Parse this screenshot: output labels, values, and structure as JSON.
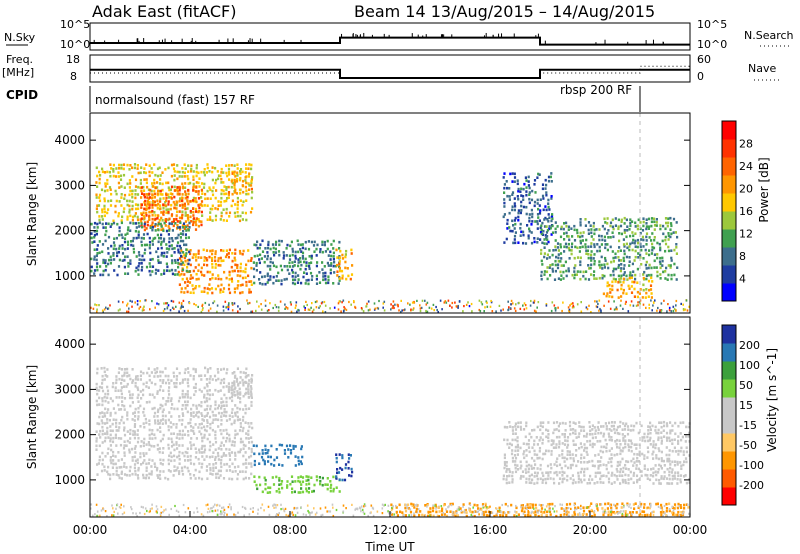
{
  "header": {
    "station": "Adak East (fitACF)",
    "beam_and_dates": "Beam 14 13/Aug/2015 – 14/Aug/2015"
  },
  "side_labels": {
    "nsky": "N.Sky",
    "nsky_ticks": [
      "10^5",
      "10^0"
    ],
    "nsearch": "N.Search",
    "nsearch_ticks": [
      "10^5",
      "10^0"
    ],
    "freq": "Freq.",
    "freq_unit": "[MHz]",
    "freq_ticks": [
      "18",
      "8"
    ],
    "nave": "Nave",
    "nave_ticks": [
      "60",
      "0"
    ],
    "cpid": "CPID"
  },
  "cpid_labels": {
    "left": "normalsound (fast) 157 RF",
    "right": "rbsp 200 RF"
  },
  "colors": {
    "power_scale": [
      "#0000ff",
      "#1e3ca0",
      "#3c6e8c",
      "#40a050",
      "#9cc83c",
      "#ffc800",
      "#ff9600",
      "#ff6400",
      "#ff3200",
      "#ff0000"
    ],
    "velocity_scale": [
      "#ff0000",
      "#ff5a00",
      "#ff9600",
      "#ffc864",
      "#c8c8c8",
      "#c8c8c8",
      "#78d23c",
      "#3ca03c",
      "#2878b4",
      "#1e32a0"
    ]
  },
  "chart_data": [
    {
      "type": "line",
      "name_label": "N.Sky / N.Search",
      "x_range": [
        "00:00",
        "24:00"
      ],
      "y_scale": "log",
      "ylim": [
        1,
        100000
      ],
      "series": [
        {
          "name": "N.Sky",
          "x": [
            0,
            10,
            10,
            18,
            18,
            24
          ],
          "values": [
            20,
            20,
            200,
            200,
            10,
            10
          ]
        },
        {
          "name": "N.Search",
          "x": [
            0,
            24
          ],
          "values": [
            3,
            3
          ]
        }
      ]
    },
    {
      "type": "line",
      "name_label": "Freq. / Nave",
      "x_range": [
        "00:00",
        "24:00"
      ],
      "ylim_freq": [
        8,
        18
      ],
      "ylim_nave": [
        0,
        60
      ],
      "series": [
        {
          "name": "Freq.",
          "x": [
            0,
            10,
            10,
            18,
            18,
            24
          ],
          "values": [
            12.5,
            12.5,
            9.5,
            9.5,
            12.5,
            12.5
          ]
        },
        {
          "name": "Nave",
          "x": [
            0,
            10,
            10,
            18,
            18,
            22,
            22,
            24
          ],
          "values": [
            20,
            20,
            8,
            8,
            20,
            20,
            35,
            35
          ]
        }
      ]
    },
    {
      "type": "heatmap",
      "quantity": "Power",
      "ylabel": "Slant Range [km]",
      "colorbar_label": "Power [dB]",
      "colorbar_ticks": [
        "4",
        "8",
        "12",
        "16",
        "20",
        "24",
        "28"
      ],
      "ylim": [
        180,
        4600
      ],
      "yticks": [
        "1000",
        "2000",
        "3000",
        "4000"
      ],
      "regions": [
        {
          "t0": 0.2,
          "t1": 6.5,
          "r0": 2200,
          "r1": 3500,
          "value": 18
        },
        {
          "t0": 2.0,
          "t1": 4.5,
          "r0": 2000,
          "r1": 3000,
          "value": 24
        },
        {
          "t0": 3.5,
          "t1": 6.5,
          "r0": 600,
          "r1": 1600,
          "value": 22
        },
        {
          "t0": 0.0,
          "t1": 4.0,
          "r0": 1000,
          "r1": 2200,
          "value": 10
        },
        {
          "t0": 5.5,
          "t1": 6.5,
          "r0": 2800,
          "r1": 3300,
          "value": 20
        },
        {
          "t0": 6.5,
          "t1": 10.0,
          "r0": 800,
          "r1": 1800,
          "value": 10
        },
        {
          "t0": 9.8,
          "t1": 10.5,
          "r0": 900,
          "r1": 1600,
          "value": 20
        },
        {
          "t0": 16.5,
          "t1": 18.5,
          "r0": 1700,
          "r1": 3300,
          "value": 8
        },
        {
          "t0": 18.0,
          "t1": 23.5,
          "r0": 900,
          "r1": 2300,
          "value": 12
        },
        {
          "t0": 20.5,
          "t1": 22.5,
          "r0": 500,
          "r1": 1000,
          "value": 20
        }
      ]
    },
    {
      "type": "heatmap",
      "quantity": "Velocity",
      "ylabel": "Slant Range [km]",
      "colorbar_label": "Velocity [m s^-1]",
      "colorbar_ticks": [
        "-200",
        "-100",
        "-50",
        "-15",
        "15",
        "50",
        "100",
        "200"
      ],
      "ylim": [
        180,
        4600
      ],
      "yticks": [
        "1000",
        "2000",
        "3000",
        "4000"
      ],
      "xlabel": "Time UT",
      "xticks": [
        "00:00",
        "04:00",
        "08:00",
        "12:00",
        "16:00",
        "20:00",
        "00:00"
      ],
      "regions": [
        {
          "t0": 0.2,
          "t1": 6.5,
          "r0": 1000,
          "r1": 3500,
          "value": 0
        },
        {
          "t0": 5.5,
          "t1": 6.5,
          "r0": 2800,
          "r1": 3300,
          "value": 0
        },
        {
          "t0": 6.5,
          "t1": 8.5,
          "r0": 1300,
          "r1": 1800,
          "value": 180
        },
        {
          "t0": 6.5,
          "t1": 10.0,
          "r0": 700,
          "r1": 1100,
          "value": 40
        },
        {
          "t0": 9.8,
          "t1": 10.5,
          "r0": 900,
          "r1": 1600,
          "value": 200
        },
        {
          "t0": 16.5,
          "t1": 24.0,
          "r0": 900,
          "r1": 2300,
          "value": 0
        },
        {
          "t0": 12.0,
          "t1": 24.0,
          "r0": 180,
          "r1": 500,
          "value": -60
        }
      ]
    }
  ]
}
